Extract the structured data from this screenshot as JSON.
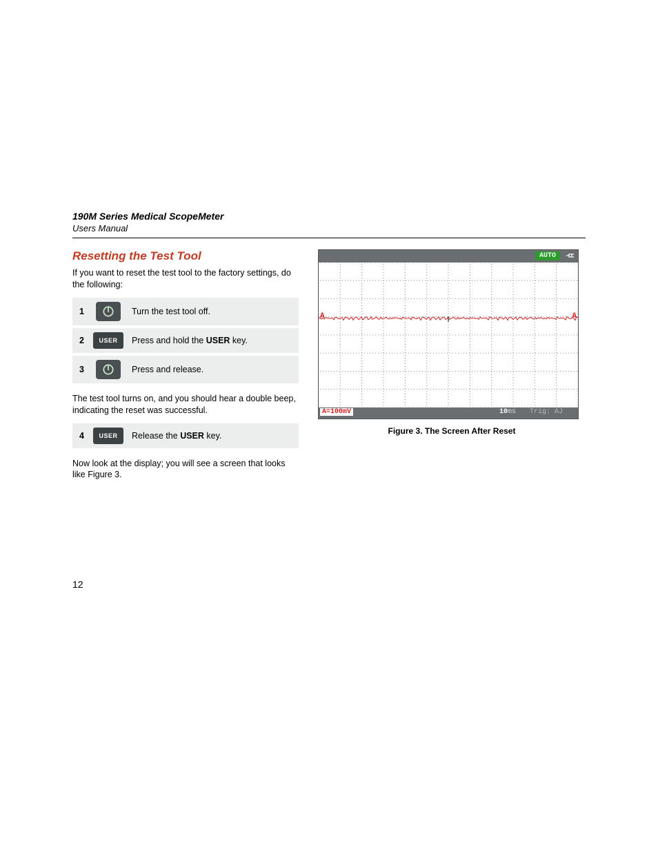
{
  "header": {
    "title": "190M Series Medical ScopeMeter",
    "subtitle": "Users Manual"
  },
  "section": {
    "heading": "Resetting the Test Tool",
    "intro": "If you want to reset the test tool to the factory settings, do the following:",
    "mid_text_a": "The test tool turns on, and you should hear a double beep, indicating the reset was successful.",
    "outro": "Now look at the display; you will see a screen that looks like Figure 3."
  },
  "steps_a": [
    {
      "num": "1",
      "icon": "power",
      "text_pre": "Turn the test tool off.",
      "bold": "",
      "text_post": ""
    },
    {
      "num": "2",
      "icon": "user",
      "text_pre": "Press and hold the ",
      "bold": "USER",
      "text_post": " key."
    },
    {
      "num": "3",
      "icon": "power",
      "text_pre": "Press and release.",
      "bold": "",
      "text_post": ""
    }
  ],
  "steps_b": [
    {
      "num": "4",
      "icon": "user",
      "text_pre": "Release the ",
      "bold": "USER",
      "text_post": " key."
    }
  ],
  "user_key_label": "USER",
  "scope": {
    "auto_label": "AUTO",
    "a_scale": "A=100mV",
    "time_num": "10",
    "time_unit": "ms",
    "trig": "Trig: AJ",
    "channel_marker": "A",
    "grid": {
      "cols": 12,
      "rows": 8,
      "dot_color": "#8a8e90",
      "trace_color": "#d02020",
      "trace_row": 3
    }
  },
  "figure_caption": "Figure 3. The Screen After Reset",
  "page_number": "12",
  "colors": {
    "heading": "#c23b22",
    "row_bg": "#eceeee",
    "btn_bg": "#4a5052",
    "scope_bar": "#6a6e70",
    "auto_bg": "#2f9a2f",
    "trace": "#d02020"
  }
}
